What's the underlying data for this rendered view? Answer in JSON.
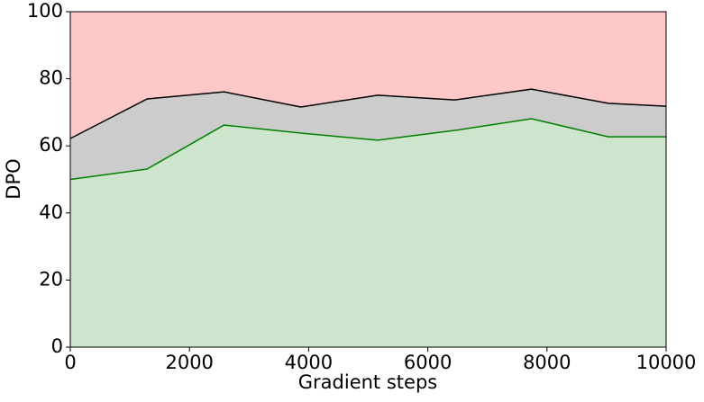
{
  "chart_data": {
    "type": "area",
    "stacked": true,
    "xlabel": "Gradient steps",
    "ylabel": "DPO",
    "x": [
      0,
      1290,
      2580,
      3870,
      5160,
      6450,
      7740,
      9030,
      10000
    ],
    "series": [
      {
        "color": "#cde5cd",
        "edgecolor": "green",
        "values": [
          50,
          53.1,
          66.2,
          63.8,
          61.7,
          64.6,
          68.1,
          62.7,
          62.7
        ]
      },
      {
        "color": "#cccccc",
        "edgecolor": "black",
        "values": [
          12.2,
          20.9,
          9.9,
          7.8,
          13.4,
          9.1,
          8.8,
          10,
          9.1
        ]
      },
      {
        "color": "#ffc8c8",
        "values": [
          37.8,
          26,
          23.9,
          28.4,
          24.9,
          26.3,
          23.1,
          27.3,
          28.2
        ]
      }
    ],
    "xlim": [
      0,
      10000
    ],
    "xticks": [
      0,
      2000,
      4000,
      6000,
      8000,
      10000
    ],
    "ylim": [
      0,
      100
    ],
    "yticks": [
      0,
      20,
      40,
      60,
      80,
      100
    ]
  }
}
